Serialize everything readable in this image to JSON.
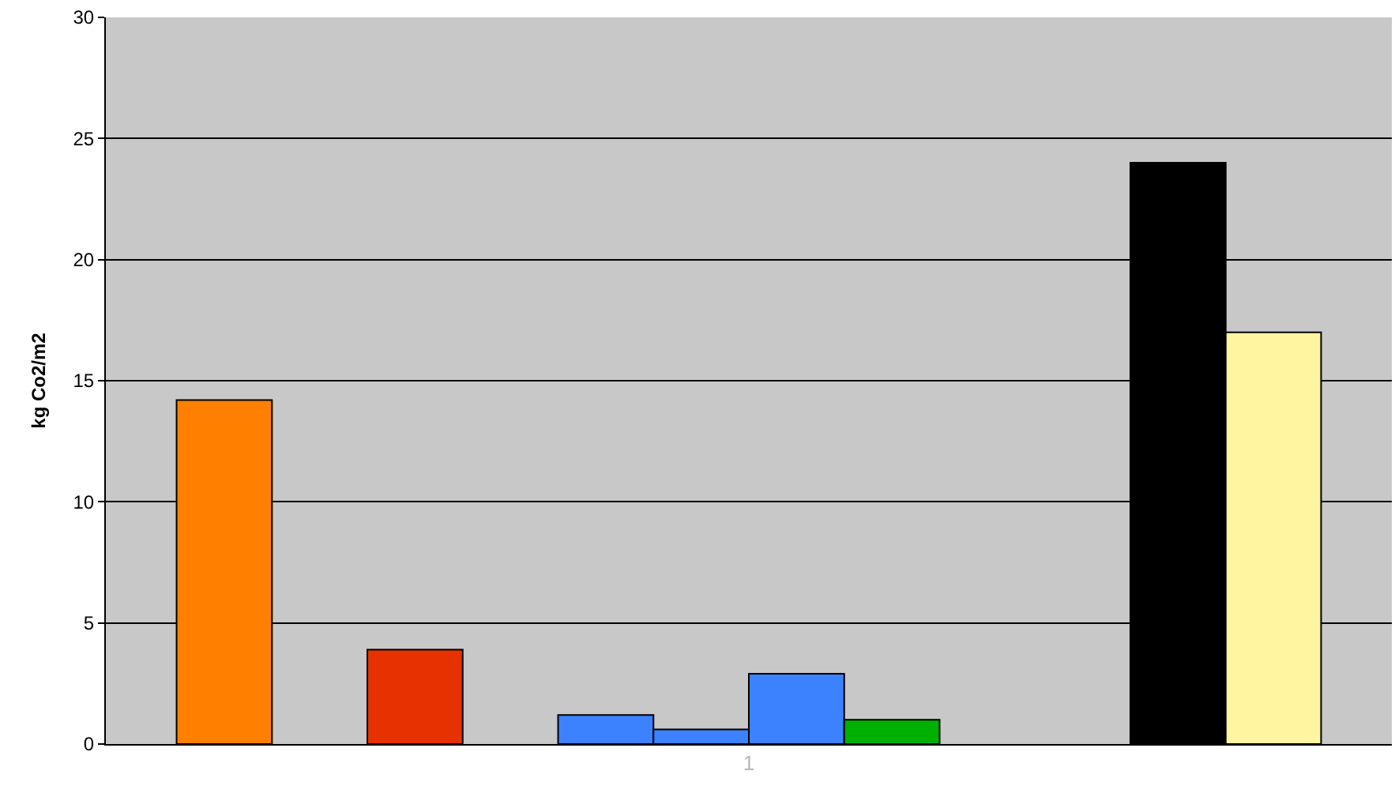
{
  "chart_data": {
    "type": "bar",
    "ylabel": "kg Co2/m2",
    "categories": [
      "1"
    ],
    "series": [
      {
        "color": "#ff8000",
        "values": [
          14.2
        ]
      },
      {
        "color": null,
        "values": [
          null
        ]
      },
      {
        "color": "#e63200",
        "values": [
          3.9
        ]
      },
      {
        "color": null,
        "values": [
          null
        ]
      },
      {
        "color": "#3c82ff",
        "values": [
          1.2
        ]
      },
      {
        "color": "#3c82ff",
        "values": [
          0.6
        ]
      },
      {
        "color": "#3c82ff",
        "values": [
          2.9
        ]
      },
      {
        "color": "#00b000",
        "values": [
          1.0
        ]
      },
      {
        "color": null,
        "values": [
          null
        ]
      },
      {
        "color": null,
        "values": [
          null
        ]
      },
      {
        "color": "#000000",
        "values": [
          24
        ]
      },
      {
        "color": "#fff5a0",
        "values": [
          17
        ]
      }
    ],
    "ylim": [
      0,
      30
    ],
    "yticks": [
      0,
      5,
      10,
      15,
      20,
      25,
      30
    ],
    "grid": "y"
  }
}
